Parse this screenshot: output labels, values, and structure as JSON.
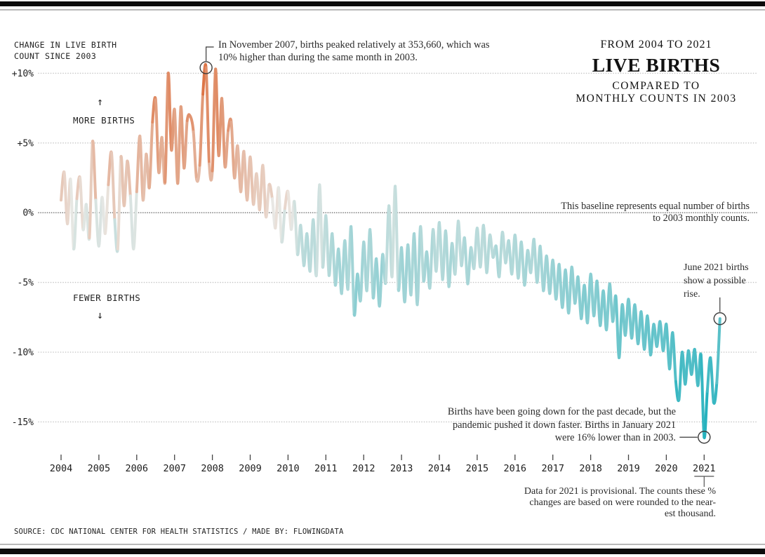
{
  "frame": {
    "top_bar_color": "#0c0c0c",
    "rule_color": "#b9b9b9"
  },
  "header": {
    "label_lines": [
      "CHANGE IN LIVE BIRTH",
      "COUNT SINCE 2003"
    ],
    "title_kicker": "FROM 2004 TO 2021",
    "title": "LIVE BIRTHS",
    "subtitle_lines": [
      "COMPARED TO",
      "MONTHLY COUNTS IN 2003"
    ]
  },
  "direction_labels": {
    "more": {
      "label": "MORE BIRTHS",
      "arrow": "↑"
    },
    "fewer": {
      "label": "FEWER BIRTHS",
      "arrow": "↓"
    }
  },
  "annotations": {
    "peak": {
      "lines": [
        "In November 2007, births peaked relatively at 353,660, which was",
        "10% higher than during the same month in 2003."
      ]
    },
    "baseline": {
      "lines": [
        "This baseline represents equal number of births",
        "to 2003 monthly counts."
      ]
    },
    "june": {
      "lines": [
        "June 2021 births",
        "show a possible",
        "rise."
      ]
    },
    "jan": {
      "lines": [
        "Births have been going down for the past decade, but the",
        "pandemic pushed it down faster. Births in January 2021",
        "were 16% lower than in 2003."
      ]
    },
    "footnote": {
      "lines": [
        "Data for 2021 is provisional. The counts these %",
        "changes are based on were rounded to the near-",
        "est thousand."
      ]
    }
  },
  "footer": {
    "source": "SOURCE: CDC NATIONAL CENTER FOR HEALTH STATISTICS / MADE BY: FLOWINGDATA"
  },
  "chart_data": {
    "type": "line",
    "title": "Live births compared to monthly counts in 2003, 2004–2021",
    "x_unit": "month",
    "start": "2004-01",
    "end": "2021-06",
    "years": [
      2004,
      2005,
      2006,
      2007,
      2008,
      2009,
      2010,
      2011,
      2012,
      2013,
      2014,
      2015,
      2016,
      2017,
      2018,
      2019,
      2020,
      2021
    ],
    "yticks": [
      {
        "label": "+10%",
        "value": 10
      },
      {
        "label": "+5%",
        "value": 5
      },
      {
        "label": "0%",
        "value": 0
      },
      {
        "label": "-5%",
        "value": -5
      },
      {
        "label": "-10%",
        "value": -10
      },
      {
        "label": "-15%",
        "value": -15
      }
    ],
    "ylim": [
      -17.5,
      12
    ],
    "grid": "dotted-horizontal",
    "legend": "none",
    "series": [
      {
        "name": "pct_change_in_births_vs_same_month_2003",
        "values": [
          0.9,
          2.9,
          -0.8,
          2.4,
          -2.6,
          1.0,
          2.5,
          -1.2,
          0.6,
          -1.8,
          5.1,
          0.9,
          -2.4,
          1.1,
          -1.5,
          2.0,
          4.3,
          -0.5,
          -2.6,
          4.0,
          0.5,
          3.7,
          1.2,
          -2.6,
          1.5,
          5.5,
          0.9,
          4.2,
          1.8,
          6.5,
          8.1,
          2.9,
          5.4,
          2.2,
          10.0,
          4.5,
          7.4,
          2.1,
          7.6,
          3.2,
          6.6,
          6.9,
          5.8,
          2.4,
          3.4,
          8.5,
          10.4,
          3.5,
          3.0,
          10.3,
          4.1,
          8.2,
          3.3,
          5.9,
          6.5,
          2.5,
          4.8,
          1.5,
          4.4,
          0.9,
          4.0,
          0.6,
          2.8,
          0.2,
          3.4,
          -0.3,
          2.0,
          1.0,
          -1.1,
          1.8,
          -2.1,
          0.3,
          1.5,
          -1.2,
          0.8,
          -3.0,
          -0.9,
          -3.8,
          -1.5,
          -4.2,
          -0.5,
          -4.5,
          2.0,
          -3.9,
          -0.2,
          -4.5,
          -1.5,
          -5.2,
          -2.6,
          -5.8,
          -2.0,
          -5.5,
          -1.0,
          -7.3,
          -4.4,
          -6.3,
          -2.1,
          -5.6,
          -1.2,
          -6.1,
          -3.3,
          -6.7,
          -3.0,
          -5.0,
          0.5,
          -4.6,
          1.9,
          -5.5,
          -2.5,
          -6.4,
          -2.3,
          -5.9,
          -1.5,
          -6.6,
          -1.0,
          -4.9,
          -2.8,
          -5.4,
          -1.2,
          -4.2,
          -0.7,
          -4.8,
          -1.3,
          -5.3,
          -2.2,
          -4.4,
          -0.6,
          -3.8,
          -1.8,
          -5.1,
          -2.5,
          -4.0,
          -1.1,
          -3.9,
          -0.9,
          -4.3,
          -1.6,
          -3.2,
          -2.4,
          -4.6,
          -1.4,
          -3.6,
          -2.0,
          -4.4,
          -1.6,
          -4.7,
          -2.1,
          -5.2,
          -2.7,
          -4.3,
          -1.9,
          -5.0,
          -2.4,
          -5.6,
          -3.1,
          -5.8,
          -3.4,
          -6.2,
          -3.7,
          -6.8,
          -4.1,
          -7.2,
          -3.9,
          -6.5,
          -4.6,
          -7.6,
          -5.2,
          -7.9,
          -4.4,
          -7.4,
          -4.9,
          -8.1,
          -5.6,
          -8.4,
          -5.1,
          -7.8,
          -6.0,
          -10.4,
          -6.6,
          -8.8,
          -6.2,
          -9.0,
          -6.6,
          -9.4,
          -7.1,
          -9.8,
          -7.4,
          -10.2,
          -8.0,
          -9.6,
          -7.8,
          -9.9,
          -8.0,
          -11.2,
          -8.6,
          -12.1,
          -13.4,
          -10.0,
          -12.3,
          -9.9,
          -11.6,
          -9.8,
          -12.4,
          -10.2,
          -16.1,
          -12.8,
          -10.4,
          -13.6,
          -12.2,
          -7.6
        ]
      }
    ],
    "markers": [
      {
        "index": 46,
        "label": "Nov 2007 peak",
        "value": 10.4,
        "callout": "elbow-up-right"
      },
      {
        "index": 204,
        "label": "Jan 2021 low",
        "value": -16.1,
        "callout": "dash-left"
      },
      {
        "index": 209,
        "label": "Jun 2021 latest",
        "value": -7.6,
        "callout": "line-up"
      }
    ],
    "colors": {
      "positive": "#dc6c3a",
      "negative": "#14adbb",
      "neutral": "#eae8e4",
      "grid": "#c7c7c7",
      "baseline_grid": "#7d7d7d",
      "axis_text": "#1d1d1d",
      "marker_stroke": "#3a3a3a"
    }
  }
}
